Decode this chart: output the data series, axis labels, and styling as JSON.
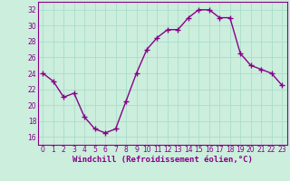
{
  "x": [
    0,
    1,
    2,
    3,
    4,
    5,
    6,
    7,
    8,
    9,
    10,
    11,
    12,
    13,
    14,
    15,
    16,
    17,
    18,
    19,
    20,
    21,
    22,
    23
  ],
  "y": [
    24.0,
    23.0,
    21.0,
    21.5,
    18.5,
    17.0,
    16.5,
    17.0,
    20.5,
    24.0,
    27.0,
    28.5,
    29.5,
    29.5,
    31.0,
    32.0,
    32.0,
    31.0,
    31.0,
    26.5,
    25.0,
    24.5,
    24.0,
    22.5
  ],
  "line_color": "#880088",
  "marker": "+",
  "markersize": 4,
  "linewidth": 1.0,
  "bg_color": "#cceedd",
  "grid_color": "#aaddcc",
  "xlabel": "Windchill (Refroidissement éolien,°C)",
  "xlabel_fontsize": 6.5,
  "tick_fontsize": 5.5,
  "ylim": [
    15,
    33
  ],
  "yticks": [
    16,
    18,
    20,
    22,
    24,
    26,
    28,
    30,
    32
  ],
  "xticks": [
    0,
    1,
    2,
    3,
    4,
    5,
    6,
    7,
    8,
    9,
    10,
    11,
    12,
    13,
    14,
    15,
    16,
    17,
    18,
    19,
    20,
    21,
    22,
    23
  ],
  "xlim": [
    -0.5,
    23.5
  ]
}
